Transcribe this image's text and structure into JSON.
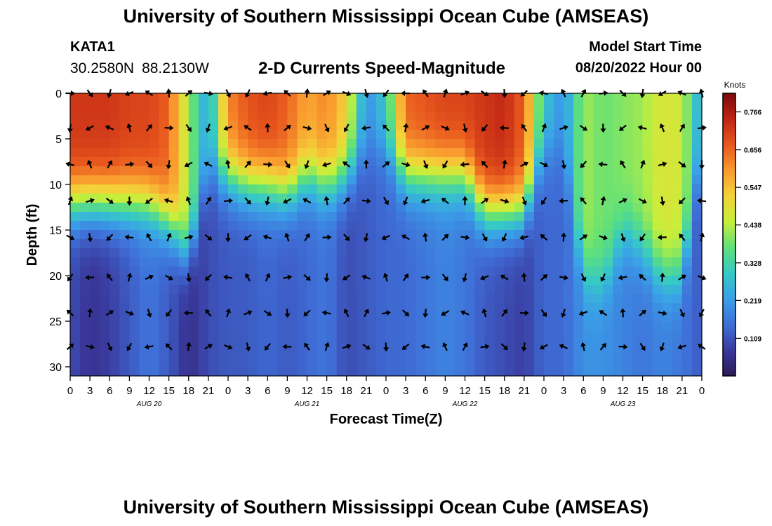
{
  "header": {
    "title": "University of Southern Mississippi Ocean Cube (AMSEAS)",
    "station_id": "KATA1",
    "latitude": "30.2580N",
    "longitude": "88.2130W",
    "subtitle": "2-D Currents Speed-Magnitude",
    "model_start_label": "Model Start Time",
    "model_start_value": "08/20/2022 Hour 00"
  },
  "footer": {
    "title": "University of Southern Mississippi Ocean Cube (AMSEAS)"
  },
  "colors": {
    "scale": [
      "#2b1a55",
      "#3a3a9e",
      "#3f6fd8",
      "#3aa0e8",
      "#36c9c6",
      "#5fe07a",
      "#c6ef3a",
      "#f4d23a",
      "#f99a2e",
      "#e8571e",
      "#c02414",
      "#7a0a0a"
    ]
  },
  "chart_data": {
    "type": "heatmap",
    "title": "2-D Currents Speed-Magnitude",
    "xlabel": "Forecast Time(Z)",
    "ylabel": "Depth (ft)",
    "x_range": [
      0,
      96
    ],
    "ylim": [
      0,
      31
    ],
    "y_inverted": true,
    "x_tick_labels": [
      "0",
      "3",
      "6",
      "9",
      "12",
      "15",
      "18",
      "21",
      "0",
      "3",
      "6",
      "9",
      "12",
      "15",
      "18",
      "21",
      "0",
      "3",
      "6",
      "9",
      "12",
      "15",
      "18",
      "21",
      "0",
      "3",
      "6",
      "9",
      "12",
      "15",
      "18",
      "21",
      "0"
    ],
    "y_ticks": [
      0,
      5,
      10,
      15,
      20,
      25,
      30
    ],
    "day_labels": [
      {
        "hour": 12,
        "label": "AUG 20"
      },
      {
        "hour": 36,
        "label": "AUG 21"
      },
      {
        "hour": 60,
        "label": "AUG 22"
      },
      {
        "hour": 84,
        "label": "AUG 23"
      }
    ],
    "colorbar": {
      "title": "Knots",
      "ticks": [
        0.766,
        0.656,
        0.547,
        0.438,
        0.328,
        0.219,
        0.109
      ],
      "range": [
        0,
        0.82
      ]
    },
    "arrow_depths": [
      0,
      3.8,
      7.8,
      11.8,
      15.8,
      20.2,
      24.1,
      27.8
    ],
    "arrow_hours": [
      0,
      3,
      6,
      9,
      12,
      15,
      18,
      21,
      24,
      27,
      30,
      33,
      36,
      39,
      42,
      45,
      48,
      51,
      54,
      57,
      60,
      63,
      66,
      69,
      72,
      75,
      78,
      81,
      84,
      87,
      90,
      93,
      96
    ]
  }
}
